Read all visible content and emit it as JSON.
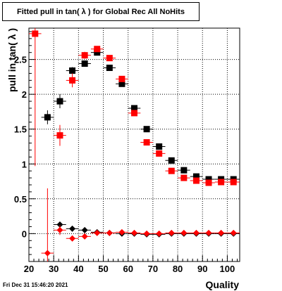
{
  "chart_data": {
    "type": "scatter",
    "title": "Fitted pull in tan( λ ) for Global Rec All NoHits",
    "xlabel": "Quality",
    "ylabel": "pull in tan( λ )",
    "xlim": [
      20,
      105
    ],
    "ylim": [
      -0.4,
      2.95
    ],
    "xticks": [
      20,
      30,
      40,
      50,
      60,
      70,
      80,
      90,
      100
    ],
    "yticks": [
      0,
      0.5,
      1,
      1.5,
      2,
      2.5
    ],
    "ytick_labels": [
      "0",
      "0.5",
      "1",
      "1.5",
      "2",
      "2.5"
    ],
    "grid": true,
    "series": [
      {
        "name": "",
        "color": "#000000",
        "marker": "square",
        "x": [
          27.5,
          32.5,
          37.5,
          42.5,
          47.5,
          52.5,
          57.5,
          62.5,
          67.5,
          72.5,
          77.5,
          82.5,
          87.5,
          92.5,
          97.5,
          102.5
        ],
        "y": [
          1.67,
          1.9,
          2.34,
          2.44,
          2.6,
          2.38,
          2.15,
          1.8,
          1.5,
          1.25,
          1.05,
          0.91,
          0.82,
          0.78,
          0.78,
          0.78
        ],
        "yerr": [
          0.1,
          0.1,
          0.05,
          0.03,
          0.03,
          0.03,
          0.03,
          0.03,
          0.02,
          0.02,
          0.02,
          0.02,
          0.02,
          0.02,
          0.02,
          0.02
        ]
      },
      {
        "name": "",
        "color": "#ff0000",
        "marker": "square",
        "x": [
          22.5,
          32.5,
          37.5,
          42.5,
          47.5,
          52.5,
          57.5,
          62.5,
          67.5,
          72.5,
          77.5,
          82.5,
          87.5,
          92.5,
          97.5,
          102.5
        ],
        "y": [
          2.87,
          1.41,
          2.2,
          2.56,
          2.65,
          2.52,
          2.22,
          1.73,
          1.31,
          1.15,
          0.9,
          0.8,
          0.76,
          0.73,
          0.74,
          0.74
        ],
        "yerr": [
          1.9,
          0.15,
          0.1,
          0.05,
          0.04,
          0.03,
          0.03,
          0.02,
          0.02,
          0.02,
          0.02,
          0.02,
          0.02,
          0.02,
          0.02,
          0.02
        ]
      },
      {
        "name": "",
        "color": "#000000",
        "marker": "diamond",
        "x": [
          32.5,
          37.5,
          42.5,
          47.5,
          52.5,
          57.5,
          62.5,
          67.5,
          72.5,
          77.5,
          82.5,
          87.5,
          92.5,
          97.5,
          102.5
        ],
        "y": [
          0.13,
          0.07,
          0.05,
          0.02,
          0.01,
          0.0,
          0.0,
          -0.01,
          -0.01,
          0.0,
          0.0,
          0.0,
          0.0,
          0.0,
          0.0
        ],
        "yerr": [
          0.04,
          0.03,
          0.02,
          0.02,
          0.02,
          0.02,
          0.02,
          0.02,
          0.02,
          0.02,
          0.02,
          0.02,
          0.02,
          0.02,
          0.02
        ]
      },
      {
        "name": "",
        "color": "#ff0000",
        "marker": "diamond",
        "x": [
          27.5,
          32.5,
          37.5,
          42.5,
          47.5,
          52.5,
          57.5,
          62.5,
          67.5,
          72.5,
          77.5,
          82.5,
          87.5,
          92.5,
          97.5,
          102.5
        ],
        "y": [
          -0.28,
          0.05,
          -0.07,
          -0.04,
          0.01,
          0.01,
          0.02,
          0.01,
          0.0,
          0.0,
          0.01,
          0.01,
          0.01,
          0.01,
          0.01,
          0.01
        ],
        "yerr": [
          0.93,
          0.07,
          0.04,
          0.03,
          0.02,
          0.02,
          0.02,
          0.02,
          0.02,
          0.02,
          0.02,
          0.02,
          0.02,
          0.02,
          0.02,
          0.02
        ]
      }
    ]
  },
  "footer": {
    "timestamp": "Fri Dec 31 15:46:20 2021"
  }
}
